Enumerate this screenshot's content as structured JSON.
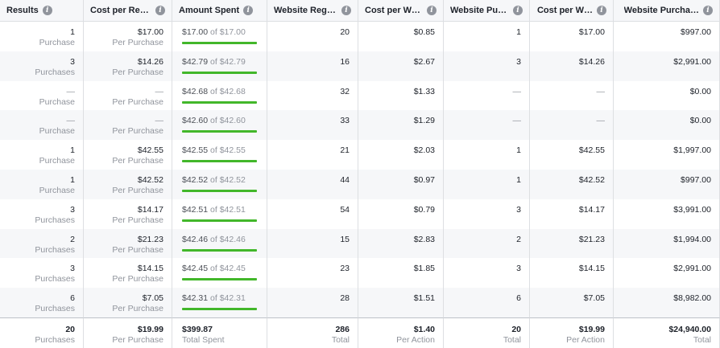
{
  "columns": [
    {
      "label": "Results"
    },
    {
      "label": "Cost per Res…"
    },
    {
      "label": "Amount Spent"
    },
    {
      "label": "Website Regis…"
    },
    {
      "label": "Cost per Web…"
    },
    {
      "label": "Website Pur…"
    },
    {
      "label": "Cost per W…"
    },
    {
      "label": "Website Purcha…"
    }
  ],
  "rows": [
    {
      "results": {
        "value": "1",
        "unit": "Purchase"
      },
      "cost_per_result": {
        "value": "$17.00",
        "unit": "Per Purchase"
      },
      "amount_spent": {
        "spent": "$17.00",
        "of_text": "of $17.00",
        "fraction": 1.0
      },
      "website_registrations": "20",
      "cost_per_website_registration": "$0.85",
      "website_purchases": "1",
      "cost_per_website_purchase": "$17.00",
      "website_purchase_value": "$997.00"
    },
    {
      "results": {
        "value": "3",
        "unit": "Purchases"
      },
      "cost_per_result": {
        "value": "$14.26",
        "unit": "Per Purchase"
      },
      "amount_spent": {
        "spent": "$42.79",
        "of_text": "of $42.79",
        "fraction": 1.0
      },
      "website_registrations": "16",
      "cost_per_website_registration": "$2.67",
      "website_purchases": "3",
      "cost_per_website_purchase": "$14.26",
      "website_purchase_value": "$2,991.00"
    },
    {
      "results": {
        "value": "—",
        "unit": "Purchase"
      },
      "cost_per_result": {
        "value": "—",
        "unit": "Per Purchase"
      },
      "amount_spent": {
        "spent": "$42.68",
        "of_text": "of $42.68",
        "fraction": 1.0
      },
      "website_registrations": "32",
      "cost_per_website_registration": "$1.33",
      "website_purchases": "—",
      "cost_per_website_purchase": "—",
      "website_purchase_value": "$0.00"
    },
    {
      "results": {
        "value": "—",
        "unit": "Purchase"
      },
      "cost_per_result": {
        "value": "—",
        "unit": "Per Purchase"
      },
      "amount_spent": {
        "spent": "$42.60",
        "of_text": "of $42.60",
        "fraction": 1.0
      },
      "website_registrations": "33",
      "cost_per_website_registration": "$1.29",
      "website_purchases": "—",
      "cost_per_website_purchase": "—",
      "website_purchase_value": "$0.00"
    },
    {
      "results": {
        "value": "1",
        "unit": "Purchase"
      },
      "cost_per_result": {
        "value": "$42.55",
        "unit": "Per Purchase"
      },
      "amount_spent": {
        "spent": "$42.55",
        "of_text": "of $42.55",
        "fraction": 1.0
      },
      "website_registrations": "21",
      "cost_per_website_registration": "$2.03",
      "website_purchases": "1",
      "cost_per_website_purchase": "$42.55",
      "website_purchase_value": "$1,997.00"
    },
    {
      "results": {
        "value": "1",
        "unit": "Purchase"
      },
      "cost_per_result": {
        "value": "$42.52",
        "unit": "Per Purchase"
      },
      "amount_spent": {
        "spent": "$42.52",
        "of_text": "of $42.52",
        "fraction": 1.0
      },
      "website_registrations": "44",
      "cost_per_website_registration": "$0.97",
      "website_purchases": "1",
      "cost_per_website_purchase": "$42.52",
      "website_purchase_value": "$997.00"
    },
    {
      "results": {
        "value": "3",
        "unit": "Purchases"
      },
      "cost_per_result": {
        "value": "$14.17",
        "unit": "Per Purchase"
      },
      "amount_spent": {
        "spent": "$42.51",
        "of_text": "of $42.51",
        "fraction": 1.0
      },
      "website_registrations": "54",
      "cost_per_website_registration": "$0.79",
      "website_purchases": "3",
      "cost_per_website_purchase": "$14.17",
      "website_purchase_value": "$3,991.00"
    },
    {
      "results": {
        "value": "2",
        "unit": "Purchases"
      },
      "cost_per_result": {
        "value": "$21.23",
        "unit": "Per Purchase"
      },
      "amount_spent": {
        "spent": "$42.46",
        "of_text": "of $42.46",
        "fraction": 1.0
      },
      "website_registrations": "15",
      "cost_per_website_registration": "$2.83",
      "website_purchases": "2",
      "cost_per_website_purchase": "$21.23",
      "website_purchase_value": "$1,994.00"
    },
    {
      "results": {
        "value": "3",
        "unit": "Purchases"
      },
      "cost_per_result": {
        "value": "$14.15",
        "unit": "Per Purchase"
      },
      "amount_spent": {
        "spent": "$42.45",
        "of_text": "of $42.45",
        "fraction": 1.0
      },
      "website_registrations": "23",
      "cost_per_website_registration": "$1.85",
      "website_purchases": "3",
      "cost_per_website_purchase": "$14.15",
      "website_purchase_value": "$2,991.00"
    },
    {
      "results": {
        "value": "6",
        "unit": "Purchases"
      },
      "cost_per_result": {
        "value": "$7.05",
        "unit": "Per Purchase"
      },
      "amount_spent": {
        "spent": "$42.31",
        "of_text": "of $42.31",
        "fraction": 1.0
      },
      "website_registrations": "28",
      "cost_per_website_registration": "$1.51",
      "website_purchases": "6",
      "cost_per_website_purchase": "$7.05",
      "website_purchase_value": "$8,982.00"
    }
  ],
  "totals": [
    {
      "value": "20",
      "unit": "Purchases"
    },
    {
      "value": "$19.99",
      "unit": "Per Purchase"
    },
    {
      "value": "$399.87",
      "unit": "Total Spent"
    },
    {
      "value": "286",
      "unit": "Total"
    },
    {
      "value": "$1.40",
      "unit": "Per Action"
    },
    {
      "value": "20",
      "unit": "Total"
    },
    {
      "value": "$19.99",
      "unit": "Per Action"
    },
    {
      "value": "$24,940.00",
      "unit": "Total"
    }
  ],
  "icons": {
    "info": "info-icon"
  },
  "colors": {
    "progress": "#42b72a",
    "stripe": "#f6f7f9",
    "muted": "#90949c"
  }
}
